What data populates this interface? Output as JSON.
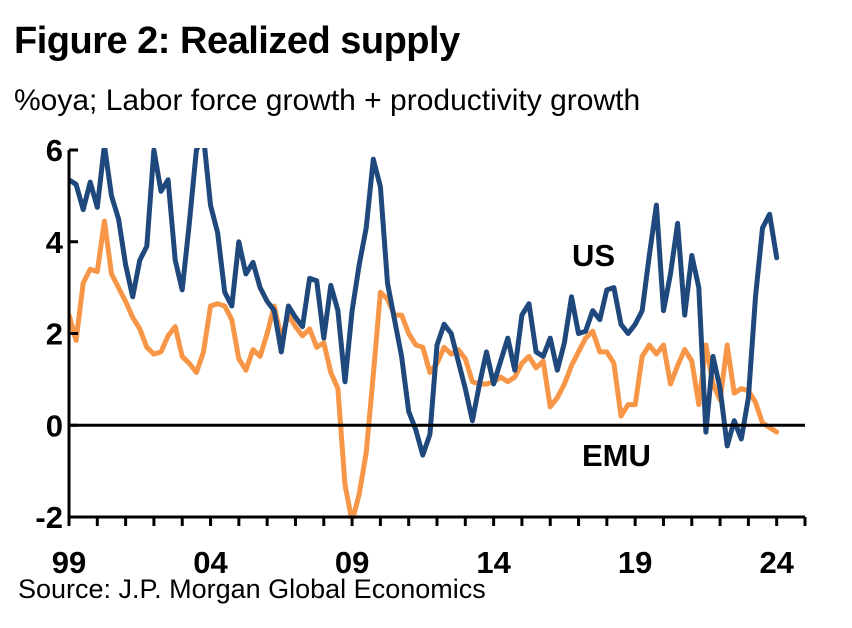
{
  "title": "Figure 2: Realized supply",
  "subtitle": "%oya; Labor force growth + productivity growth",
  "source": "Source: J.P. Morgan Global Economics",
  "colors": {
    "US": "#1f497d",
    "EMU": "#f79646",
    "axis": "#000000"
  },
  "chart_data": {
    "type": "line",
    "title": "Figure 2: Realized supply",
    "subtitle": "%oya; Labor force growth + productivity growth",
    "xlabel": "",
    "ylabel": "",
    "xlim": [
      1999,
      2025
    ],
    "ylim": [
      -2,
      6
    ],
    "yticks": [
      -2,
      0,
      2,
      4,
      6
    ],
    "xticks": [
      {
        "value": 1999,
        "label": "99"
      },
      {
        "value": 2004,
        "label": "04"
      },
      {
        "value": 2009,
        "label": "09"
      },
      {
        "value": 2014,
        "label": "14"
      },
      {
        "value": 2019,
        "label": "19"
      },
      {
        "value": 2024,
        "label": "24"
      }
    ],
    "grid": false,
    "legend": "inline labels",
    "x": [
      1999.0,
      1999.25,
      1999.5,
      1999.75,
      2000.0,
      2000.25,
      2000.5,
      2000.75,
      2001.0,
      2001.25,
      2001.5,
      2001.75,
      2002.0,
      2002.25,
      2002.5,
      2002.75,
      2003.0,
      2003.25,
      2003.5,
      2003.75,
      2004.0,
      2004.25,
      2004.5,
      2004.75,
      2005.0,
      2005.25,
      2005.5,
      2005.75,
      2006.0,
      2006.25,
      2006.5,
      2006.75,
      2007.0,
      2007.25,
      2007.5,
      2007.75,
      2008.0,
      2008.25,
      2008.5,
      2008.75,
      2009.0,
      2009.25,
      2009.5,
      2009.75,
      2010.0,
      2010.25,
      2010.5,
      2010.75,
      2011.0,
      2011.25,
      2011.5,
      2011.75,
      2012.0,
      2012.25,
      2012.5,
      2012.75,
      2013.0,
      2013.25,
      2013.5,
      2013.75,
      2014.0,
      2014.25,
      2014.5,
      2014.75,
      2015.0,
      2015.25,
      2015.5,
      2015.75,
      2016.0,
      2016.25,
      2016.5,
      2016.75,
      2017.0,
      2017.25,
      2017.5,
      2017.75,
      2018.0,
      2018.25,
      2018.5,
      2018.75,
      2019.0,
      2019.25,
      2019.5,
      2019.75,
      2020.0,
      2020.25,
      2020.5,
      2020.75,
      2021.0,
      2021.25,
      2021.5,
      2021.75,
      2022.0,
      2022.25,
      2022.5,
      2022.75,
      2023.0,
      2023.25,
      2023.5,
      2023.75,
      2024.0
    ],
    "series": [
      {
        "name": "US",
        "color": "#1f497d",
        "values": [
          5.35,
          5.25,
          4.7,
          5.3,
          4.75,
          6.1,
          5.0,
          4.5,
          3.5,
          2.8,
          3.6,
          3.9,
          6.0,
          5.1,
          5.35,
          3.6,
          2.95,
          4.4,
          6.0,
          6.3,
          4.8,
          4.2,
          2.9,
          2.6,
          4.0,
          3.3,
          3.55,
          3.0,
          2.7,
          2.5,
          1.6,
          2.6,
          2.35,
          2.15,
          3.2,
          3.15,
          1.9,
          3.05,
          2.5,
          0.95,
          2.5,
          3.5,
          4.3,
          5.8,
          5.2,
          3.1,
          2.3,
          1.5,
          0.3,
          -0.1,
          -0.65,
          -0.2,
          1.75,
          2.2,
          2.0,
          1.4,
          0.8,
          0.1,
          0.9,
          1.6,
          0.9,
          1.4,
          1.9,
          1.2,
          2.4,
          2.65,
          1.6,
          1.5,
          1.9,
          1.2,
          1.8,
          2.8,
          2.0,
          2.05,
          2.5,
          2.3,
          2.95,
          3.0,
          2.2,
          2.0,
          2.2,
          2.5,
          3.7,
          4.8,
          2.5,
          3.3,
          4.4,
          2.4,
          3.7,
          3.0,
          -0.15,
          1.5,
          0.8,
          -0.45,
          0.1,
          -0.3,
          0.6,
          2.8,
          4.3,
          4.6,
          3.65
        ]
      },
      {
        "name": "EMU",
        "color": "#f79646",
        "values": [
          2.4,
          1.85,
          3.1,
          3.4,
          3.35,
          4.45,
          3.3,
          3.0,
          2.7,
          2.35,
          2.1,
          1.7,
          1.55,
          1.6,
          1.95,
          2.15,
          1.5,
          1.35,
          1.15,
          1.6,
          2.6,
          2.65,
          2.6,
          2.3,
          1.45,
          1.2,
          1.65,
          1.5,
          2.0,
          2.6,
          1.9,
          2.4,
          2.15,
          1.95,
          2.1,
          1.7,
          1.8,
          1.15,
          0.8,
          -1.3,
          -2.1,
          -1.5,
          -0.6,
          1.1,
          2.9,
          2.75,
          2.4,
          2.4,
          2.0,
          1.75,
          1.7,
          1.15,
          1.35,
          1.7,
          1.55,
          1.65,
          1.45,
          0.95,
          0.9,
          0.9,
          0.95,
          1.05,
          0.95,
          1.05,
          1.35,
          1.5,
          1.25,
          1.4,
          0.4,
          0.6,
          0.9,
          1.3,
          1.6,
          1.9,
          2.05,
          1.6,
          1.6,
          1.35,
          0.2,
          0.45,
          0.45,
          1.5,
          1.75,
          1.55,
          1.75,
          0.9,
          1.3,
          1.65,
          1.4,
          0.45,
          1.75,
          0.9,
          0.55,
          1.75,
          0.7,
          0.8,
          0.75,
          0.5,
          0.05,
          -0.05,
          -0.15
        ]
      }
    ],
    "annotations": [
      {
        "text": "US",
        "series": "US"
      },
      {
        "text": "EMU",
        "series": "EMU"
      }
    ]
  }
}
